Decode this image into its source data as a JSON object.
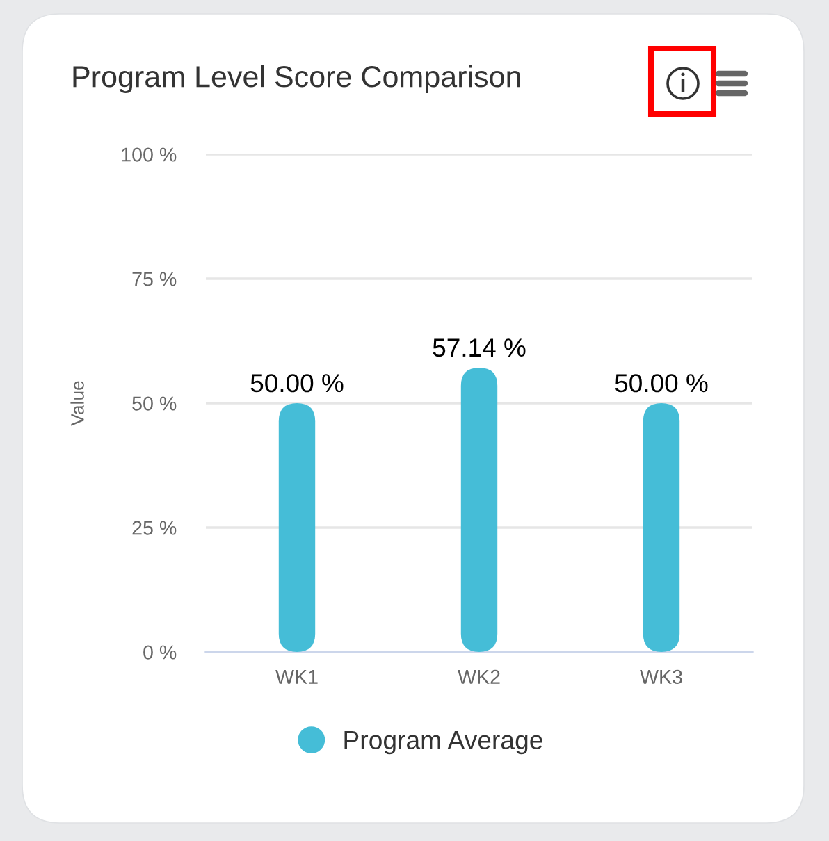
{
  "chart_data": {
    "type": "bar",
    "title": "Program Level Score Comparison",
    "ylabel": "Value",
    "categories": [
      "WK1",
      "WK2",
      "WK3"
    ],
    "series": [
      {
        "name": "Program Average",
        "color": "#45bdd7",
        "values": [
          50,
          57.14,
          50
        ],
        "value_labels": [
          "50.00 %",
          "57.14 %",
          "50.00 %"
        ]
      }
    ],
    "ylim": [
      0,
      100
    ],
    "yticks": [
      {
        "value": 0,
        "label": "0 %"
      },
      {
        "value": 25,
        "label": "25 %"
      },
      {
        "value": 50,
        "label": "50 %"
      },
      {
        "value": 75,
        "label": "75 %"
      },
      {
        "value": 100,
        "label": "100 %"
      }
    ],
    "grid": "y",
    "legend": "bottom"
  }
}
